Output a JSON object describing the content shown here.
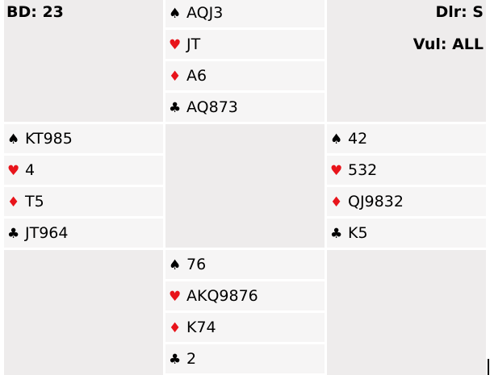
{
  "board": {
    "label": "BD: 23",
    "dealer": "Dlr: S",
    "vulnerability": "Vul: ALL"
  },
  "suits": [
    {
      "icon": "spade-icon",
      "glyph": "♠",
      "color": "#000000"
    },
    {
      "icon": "heart-icon",
      "glyph": "♥",
      "color": "#e8141b"
    },
    {
      "icon": "diamond-icon",
      "glyph": "♦",
      "color": "#e8141b"
    },
    {
      "icon": "club-icon",
      "glyph": "♣",
      "color": "#000000"
    }
  ],
  "hands": {
    "north": [
      "AQJ3",
      "JT",
      "A6",
      "AQ873"
    ],
    "west": [
      "KT985",
      "4",
      "T5",
      "JT964"
    ],
    "east": [
      "42",
      "532",
      "QJ9832",
      "K5"
    ],
    "south": [
      "76",
      "AKQ9876",
      "K74",
      "2"
    ]
  }
}
